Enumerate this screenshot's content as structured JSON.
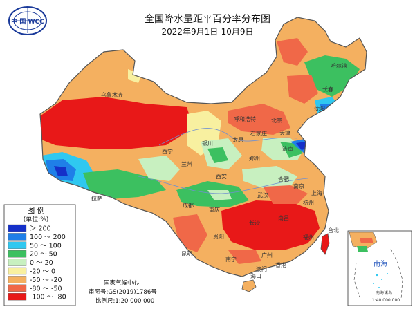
{
  "map": {
    "title": "全国降水量距平百分率分布图",
    "subtitle": "2022年9月1日-10月9日"
  },
  "logo": {
    "text": "中 国 WCC"
  },
  "legend": {
    "title": "图 例",
    "unit": "(单位:%)",
    "classes": [
      {
        "label": "＞ 200",
        "color": "#1530c8"
      },
      {
        "label": "100 ～ 200",
        "color": "#1f7fe8"
      },
      {
        "label": "50 ～ 100",
        "color": "#2fc8f0"
      },
      {
        "label": "20 ～ 50",
        "color": "#3cc060"
      },
      {
        "label": "0 ～ 20",
        "color": "#c8f0c0"
      },
      {
        "label": "-20 ～ 0",
        "color": "#f8f0a0"
      },
      {
        "label": "-50 ～ -20",
        "color": "#f4b060"
      },
      {
        "label": "-80 ～ -50",
        "color": "#f06848"
      },
      {
        "label": "-100 ～ -80",
        "color": "#e81818"
      }
    ]
  },
  "credit": {
    "org": "国家气候中心",
    "review": "审图号:GS(2019)1786号",
    "scale": "比例尺:1:20 000 000"
  },
  "inset": {
    "title": "南海",
    "label": "南海诸岛",
    "scale": "1:40 000 000"
  },
  "places": {
    "beijing": "北京",
    "tianjin": "天津",
    "shanghai": "上海",
    "chongqing": "重庆",
    "chengdu": "成都",
    "wuhan": "武汉",
    "changsha": "长沙",
    "nanjing": "南京",
    "hangzhou": "杭州",
    "fuzhou": "福州",
    "guangzhou": "广州",
    "nanning": "南宁",
    "kunming": "昆明",
    "guiyang": "贵阳",
    "lhasa": "拉萨",
    "xining": "西宁",
    "lanzhou": "兰州",
    "yinchuan": "银川",
    "xian": "西安",
    "zhengzhou": "郑州",
    "jinan": "济南",
    "shijiazhuang": "石家庄",
    "taiyuan": "太原",
    "hohhot": "呼和浩特",
    "harbin": "哈尔滨",
    "changchun": "长春",
    "shenyang": "沈阳",
    "urumqi": "乌鲁木齐",
    "hefei": "合肥",
    "nanchang": "南昌",
    "haikou": "海口",
    "hongkong": "香港",
    "macau": "澳门",
    "taibei": "台北"
  }
}
